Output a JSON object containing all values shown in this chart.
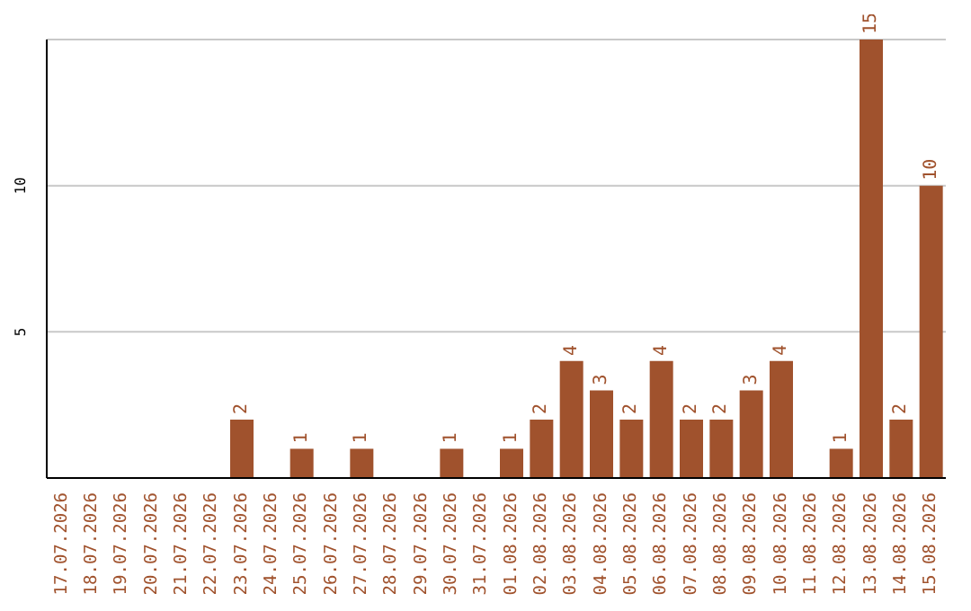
{
  "chart_data": {
    "type": "bar",
    "categories": [
      "17.07.2026",
      "18.07.2026",
      "19.07.2026",
      "20.07.2026",
      "21.07.2026",
      "22.07.2026",
      "23.07.2026",
      "24.07.2026",
      "25.07.2026",
      "26.07.2026",
      "27.07.2026",
      "28.07.2026",
      "29.07.2026",
      "30.07.2026",
      "31.07.2026",
      "01.08.2026",
      "02.08.2026",
      "03.08.2026",
      "04.08.2026",
      "05.08.2026",
      "06.08.2026",
      "07.08.2026",
      "08.08.2026",
      "09.08.2026",
      "10.08.2026",
      "11.08.2026",
      "12.08.2026",
      "13.08.2026",
      "14.08.2026",
      "15.08.2026"
    ],
    "values": [
      0,
      0,
      0,
      0,
      0,
      0,
      2,
      0,
      1,
      0,
      1,
      0,
      0,
      1,
      0,
      1,
      2,
      4,
      3,
      2,
      4,
      2,
      2,
      3,
      4,
      0,
      1,
      15,
      2,
      10
    ],
    "value_labels": [
      null,
      null,
      null,
      null,
      null,
      null,
      "2",
      null,
      "1",
      null,
      "1",
      null,
      null,
      "1",
      null,
      "1",
      "2",
      "4",
      "3",
      "2",
      "4",
      "2",
      "2",
      "3",
      "4",
      null,
      "1",
      "15",
      "2",
      "10"
    ],
    "color": "#a0522d",
    "ylim": [
      0,
      15
    ],
    "yticks": [
      5,
      10
    ],
    "grid": "y"
  }
}
